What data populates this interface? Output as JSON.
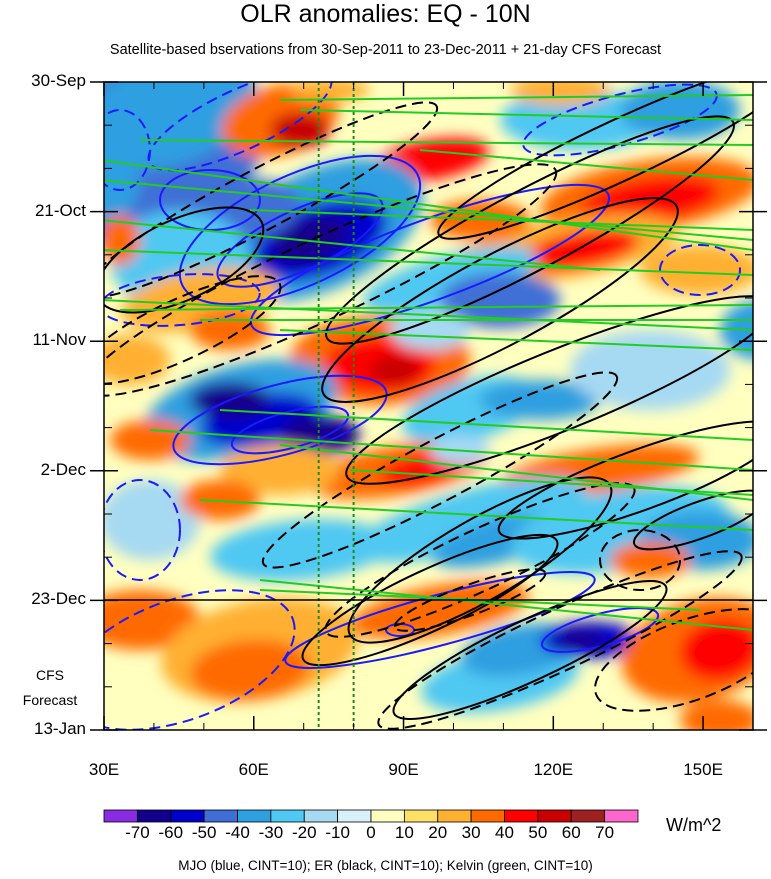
{
  "chart_data": {
    "type": "heatmap",
    "title": "OLR anomalies: EQ - 10N",
    "subtitle": "Satellite-based bservations from 30-Sep-2011 to 23-Dec-2011 + 21-day CFS Forecast",
    "x_axis": {
      "ticks": [
        "30E",
        "60E",
        "90E",
        "120E",
        "150E"
      ],
      "tick_values": [
        30,
        60,
        90,
        120,
        150
      ],
      "range": [
        30,
        160
      ]
    },
    "y_axis": {
      "ticks": [
        "30-Sep",
        "21-Oct",
        "11-Nov",
        "2-Dec",
        "23-Dec",
        "13-Jan"
      ],
      "tick_values": [
        "2011-09-30",
        "2011-10-21",
        "2011-11-11",
        "2011-12-02",
        "2011-12-23",
        "2012-01-13"
      ],
      "range": [
        "2011-09-30",
        "2012-01-13"
      ],
      "direction": "time increases downward"
    },
    "forecast_label": [
      "CFS",
      "Forecast"
    ],
    "forecast_start": "2011-12-23",
    "colorbar": {
      "labels": [
        "-70",
        "-60",
        "-50",
        "-40",
        "-30",
        "-20",
        "-10",
        "0",
        "10",
        "20",
        "30",
        "40",
        "50",
        "60",
        "70"
      ],
      "colors": [
        "#8a2be2",
        "#12008c",
        "#0000cd",
        "#3f6fd6",
        "#2f9fe0",
        "#4fc8f2",
        "#a6d9f2",
        "#d9f0fb",
        "#ffffc0",
        "#ffe066",
        "#ffb030",
        "#ff6a00",
        "#ff0000",
        "#c80000",
        "#9e2020",
        "#ff66cc"
      ],
      "units": "W/m^2"
    },
    "reference_lines_longitude": [
      73,
      80
    ],
    "contours_footer": "MJO (blue, CINT=10); ER (black, CINT=10); Kelvin (green, CINT=10)",
    "colors": {
      "mjo": "#1a1aff",
      "er": "#000000",
      "kelvin": "#22cc22",
      "ref_line": "#228822"
    }
  }
}
